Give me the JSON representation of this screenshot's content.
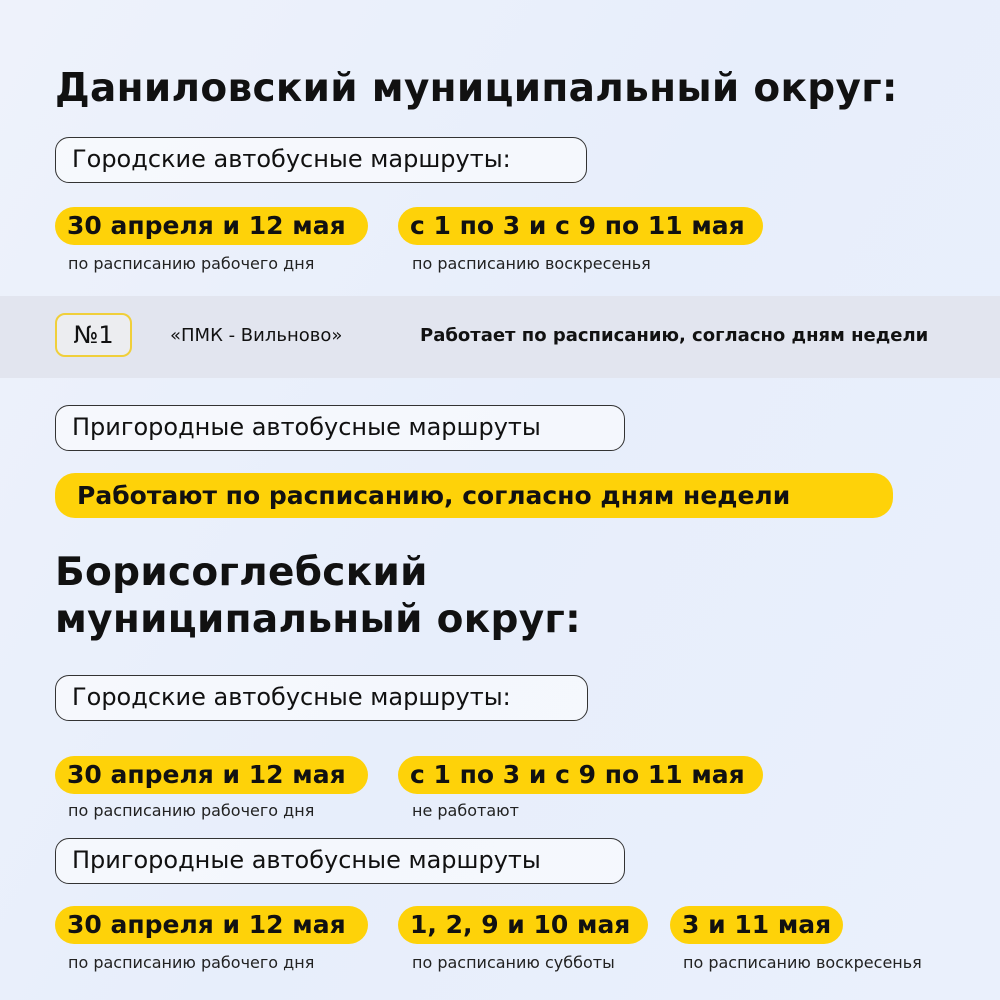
{
  "section1": {
    "title": "Даниловский муниципальный округ:",
    "city_label": "Городские автобусные маршруты:",
    "city_dates": [
      {
        "date": "30 апреля и 12 мая",
        "note": "по расписанию рабочего дня"
      },
      {
        "date": "с 1 по 3 и с 9 по 11 мая",
        "note": "по расписанию воскресенья"
      }
    ],
    "route": {
      "number": "№1",
      "name": "«ПМК - Вильново»",
      "status": "Работает по расписанию, согласно дням недели"
    },
    "suburban_label": "Пригородные автобусные маршруты",
    "suburban_status": "Работают по расписанию, согласно дням недели"
  },
  "section2": {
    "title_line1": "Борисоглебский",
    "title_line2": "муниципальный округ:",
    "city_label": "Городские автобусные маршруты:",
    "city_dates": [
      {
        "date": "30 апреля и 12 мая",
        "note": "по расписанию рабочего дня"
      },
      {
        "date": "с 1 по 3 и с 9 по 11 мая",
        "note": "не работают"
      }
    ],
    "suburban_label": "Пригородные автобусные маршруты",
    "suburban_dates": [
      {
        "date": "30 апреля и 12 мая",
        "note": "по расписанию рабочего дня"
      },
      {
        "date": "1, 2, 9 и 10 мая",
        "note": "по расписанию субботы"
      },
      {
        "date": "3 и 11 мая",
        "note": "по расписанию воскресенья"
      }
    ]
  },
  "colors": {
    "accent": "#fed209",
    "background": "#e9eefb",
    "band": "#e2e5ef"
  }
}
